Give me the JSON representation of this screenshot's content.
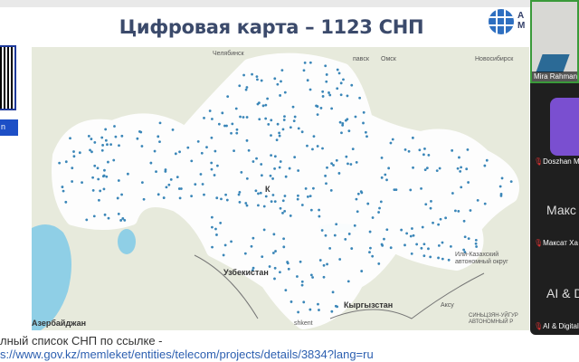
{
  "slide": {
    "title": "Цифровая карта – 1123 СНП",
    "logo_text": "А\nМ",
    "qr_button": "n",
    "footer_line1": "лный список СНП по ссылке -",
    "footer_link": "s://www.gov.kz/memleket/entities/telecom/projects/details/3834?lang=ru"
  },
  "map": {
    "labels": {
      "chelyabinsk": "Челябинск",
      "omsk": "Омск",
      "novosibirsk": "Новосибирск",
      "pavlodar_partial": "павск",
      "kz_partial": "К",
      "uzbekistan": "Узбекистан",
      "kyrgyzstan": "Кыргызстан",
      "azerbaijan": "Азербайджан",
      "tashkent_partial": "shkent",
      "ili": "Или-Казахский автономный округ",
      "aksu": "Аксу",
      "xinjiang": "СИНЬЦЗЯН-УЙГУР АВТОНОМНЫЙ Р"
    },
    "colors": {
      "land": "#e7eadc",
      "water": "#8fcfe6",
      "coverage": "#ffffff",
      "point": "#3a86b8"
    }
  },
  "participants": [
    {
      "name": "Mira Rahmanova",
      "video": true
    },
    {
      "name": "Doszhan M",
      "tile": ""
    },
    {
      "name": "Максат Ха",
      "tile": "Макс"
    },
    {
      "name": "AI & Digital",
      "tile": "AI & D"
    }
  ]
}
